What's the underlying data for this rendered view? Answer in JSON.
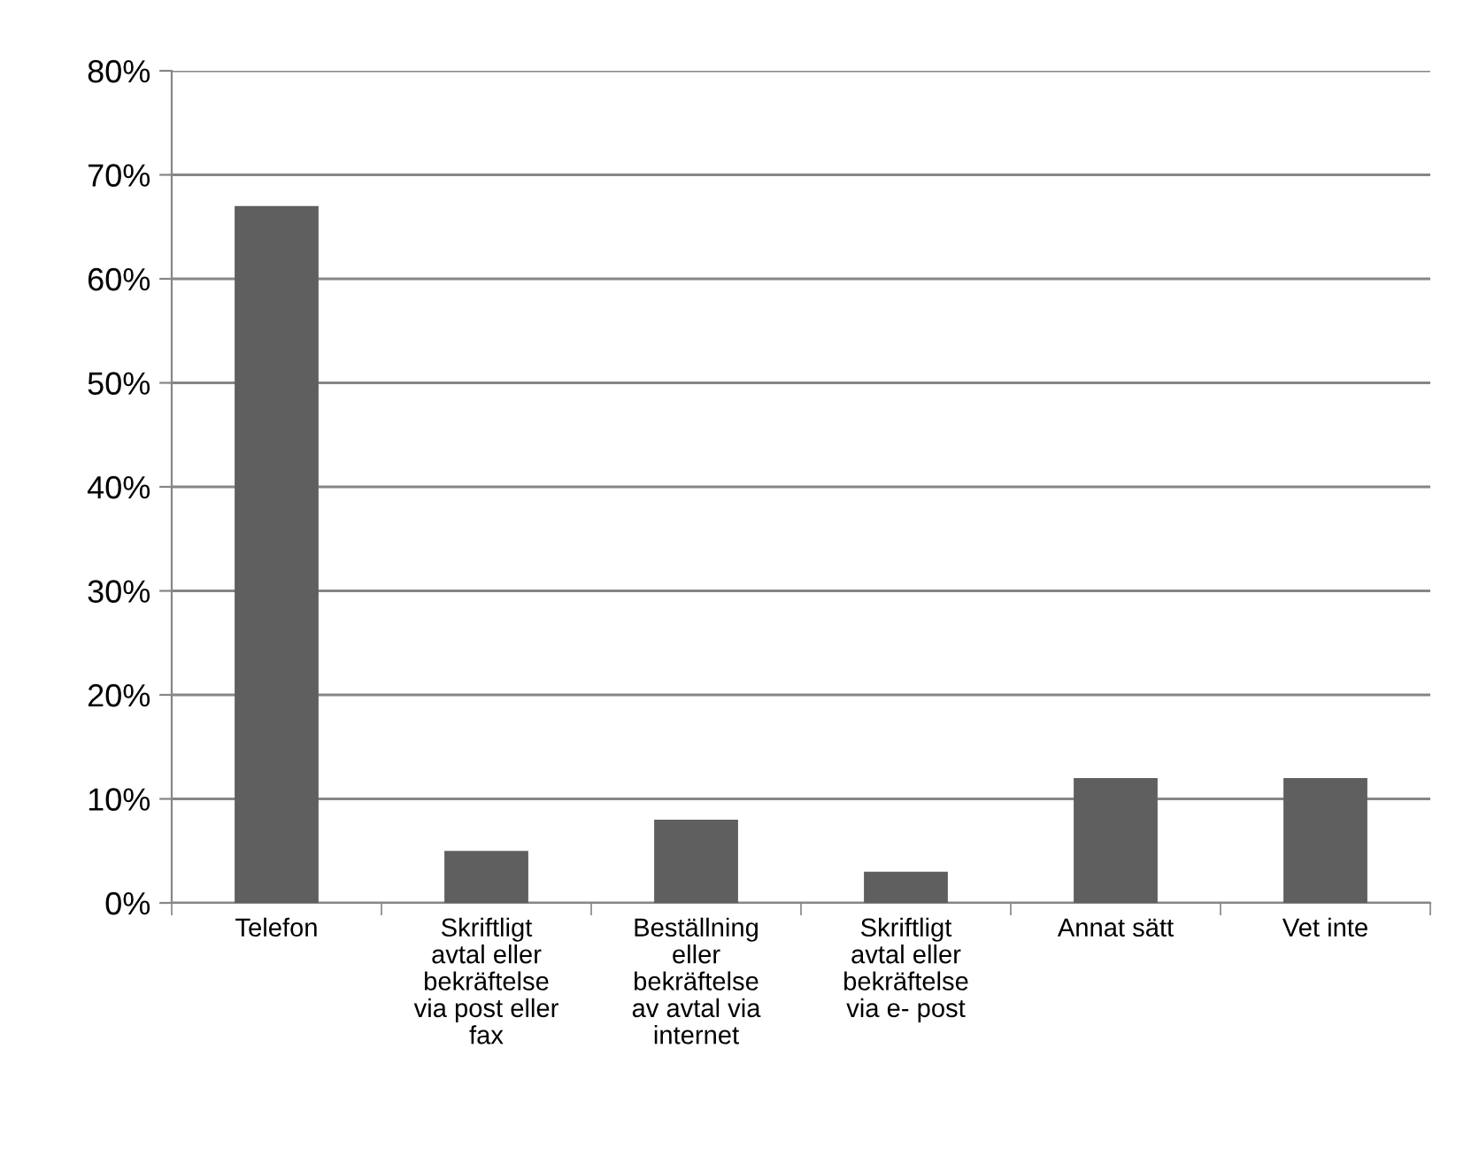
{
  "chart_data": {
    "type": "bar",
    "categories": [
      "Telefon",
      "Skriftligt\navtal eller\nbekräftelse\nvia post eller\nfax",
      "Beställning\neller\nbekräftelse\nav avtal via\ninternet",
      "Skriftligt\navtal eller\nbekräftelse\nvia e- post",
      "Annat sätt",
      "Vet inte"
    ],
    "values": [
      67,
      5,
      8,
      3,
      12,
      12
    ],
    "color": "#5f5f5f",
    "ylim": [
      0,
      80
    ],
    "yticks": [
      {
        "value": 0,
        "label": "0%"
      },
      {
        "value": 10,
        "label": "10%"
      },
      {
        "value": 20,
        "label": "20%"
      },
      {
        "value": 30,
        "label": "30%"
      },
      {
        "value": 40,
        "label": "40%"
      },
      {
        "value": 50,
        "label": "50%"
      },
      {
        "value": 60,
        "label": "60%"
      },
      {
        "value": 70,
        "label": "70%"
      },
      {
        "value": 80,
        "label": "80%"
      }
    ],
    "grid": "y"
  }
}
